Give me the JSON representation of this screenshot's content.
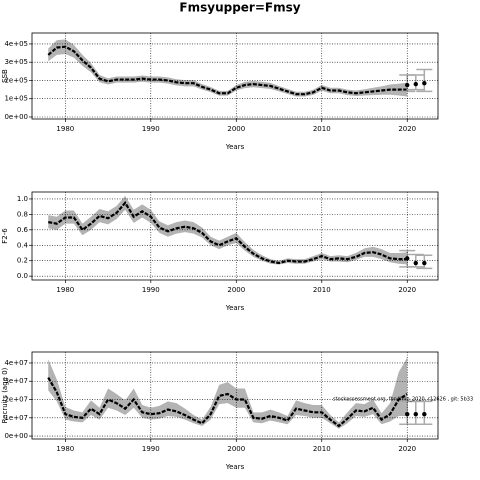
{
  "chart_data": [
    {
      "type": "line",
      "title": "Fmsyupper=Fmsy",
      "ylabel": "SSB",
      "xlabel": "Years",
      "xlim": [
        1976.1,
        2023.6
      ],
      "xticks": [
        1980,
        1990,
        2000,
        2010,
        2020
      ],
      "ylim": [
        -11000,
        460000
      ],
      "yticks": [
        {
          "value": 0,
          "label": "0e+00"
        },
        {
          "value": 100000,
          "label": "1e+05"
        },
        {
          "value": 200000,
          "label": "2e+05"
        },
        {
          "value": 300000,
          "label": "3e+05"
        },
        {
          "value": 400000,
          "label": "4e+05"
        }
      ],
      "grid": true,
      "line_color": "#000000",
      "band_color": "#b3b3b3",
      "x": [
        1978,
        1979,
        1980,
        1981,
        1982,
        1983,
        1984,
        1985,
        1986,
        1987,
        1988,
        1989,
        1990,
        1991,
        1992,
        1993,
        1994,
        1995,
        1996,
        1997,
        1998,
        1999,
        2000,
        2001,
        2002,
        2003,
        2004,
        2005,
        2006,
        2007,
        2008,
        2009,
        2010,
        2011,
        2012,
        2013,
        2014,
        2015,
        2016,
        2017,
        2018,
        2019,
        2020
      ],
      "values": [
        340000,
        380000,
        385000,
        360000,
        310000,
        270000,
        210000,
        195000,
        205000,
        205000,
        205000,
        210000,
        205000,
        205000,
        200000,
        190000,
        185000,
        185000,
        165000,
        150000,
        130000,
        130000,
        160000,
        175000,
        180000,
        175000,
        170000,
        155000,
        140000,
        125000,
        125000,
        135000,
        160000,
        145000,
        145000,
        135000,
        130000,
        135000,
        140000,
        145000,
        150000,
        150000,
        150000
      ],
      "lower": [
        305000,
        340000,
        345000,
        325000,
        280000,
        245000,
        190000,
        178000,
        188000,
        188000,
        188000,
        193000,
        188000,
        188000,
        183000,
        173000,
        168000,
        168000,
        150000,
        136000,
        117000,
        117000,
        145000,
        158000,
        163000,
        158000,
        153000,
        140000,
        126000,
        112000,
        112000,
        121000,
        144000,
        130000,
        130000,
        120000,
        115000,
        118000,
        120000,
        122000,
        122000,
        118000,
        112000
      ],
      "upper": [
        375000,
        420000,
        425000,
        395000,
        340000,
        295000,
        230000,
        212000,
        222000,
        222000,
        222000,
        227000,
        222000,
        222000,
        217000,
        207000,
        202000,
        202000,
        180000,
        164000,
        143000,
        143000,
        175000,
        192000,
        197000,
        192000,
        187000,
        170000,
        154000,
        138000,
        138000,
        149000,
        176000,
        160000,
        160000,
        150000,
        145000,
        152000,
        160000,
        168000,
        178000,
        182000,
        188000
      ],
      "forecast": {
        "x": [
          2020,
          2021,
          2022
        ],
        "values": [
          175000,
          180000,
          185000
        ],
        "lower": [
          140000,
          150000,
          140000
        ],
        "upper": [
          230000,
          230000,
          260000
        ]
      }
    },
    {
      "type": "line",
      "ylabel": "F2-6",
      "xlabel": "Years",
      "xlim": [
        1976.1,
        2023.6
      ],
      "xticks": [
        1980,
        1990,
        2000,
        2010,
        2020
      ],
      "ylim": [
        -0.05,
        1.09
      ],
      "yticks": [
        {
          "value": 0,
          "label": "0.0"
        },
        0.2,
        0.4,
        0.6,
        0.8,
        {
          "value": 1,
          "label": "1.0"
        }
      ],
      "grid": true,
      "line_color": "#000000",
      "band_color": "#b3b3b3",
      "x": [
        1978,
        1979,
        1980,
        1981,
        1982,
        1983,
        1984,
        1985,
        1986,
        1987,
        1988,
        1989,
        1990,
        1991,
        1992,
        1993,
        1994,
        1995,
        1996,
        1997,
        1998,
        1999,
        2000,
        2001,
        2002,
        2003,
        2004,
        2005,
        2006,
        2007,
        2008,
        2009,
        2010,
        2011,
        2012,
        2013,
        2014,
        2015,
        2016,
        2017,
        2018,
        2019,
        2020
      ],
      "values": [
        0.7,
        0.68,
        0.76,
        0.76,
        0.6,
        0.68,
        0.78,
        0.75,
        0.82,
        0.95,
        0.77,
        0.84,
        0.77,
        0.63,
        0.58,
        0.62,
        0.64,
        0.62,
        0.56,
        0.45,
        0.4,
        0.45,
        0.49,
        0.38,
        0.29,
        0.23,
        0.19,
        0.17,
        0.2,
        0.19,
        0.19,
        0.22,
        0.26,
        0.22,
        0.23,
        0.22,
        0.25,
        0.3,
        0.31,
        0.28,
        0.23,
        0.22,
        0.22
      ],
      "lower": [
        0.62,
        0.6,
        0.68,
        0.68,
        0.53,
        0.6,
        0.7,
        0.67,
        0.74,
        0.86,
        0.69,
        0.76,
        0.69,
        0.56,
        0.51,
        0.55,
        0.57,
        0.55,
        0.5,
        0.4,
        0.35,
        0.4,
        0.43,
        0.33,
        0.25,
        0.2,
        0.16,
        0.15,
        0.17,
        0.16,
        0.16,
        0.19,
        0.22,
        0.19,
        0.19,
        0.18,
        0.21,
        0.25,
        0.25,
        0.22,
        0.18,
        0.16,
        0.15
      ],
      "upper": [
        0.79,
        0.77,
        0.85,
        0.85,
        0.68,
        0.77,
        0.87,
        0.84,
        0.91,
        1.04,
        0.86,
        0.93,
        0.86,
        0.71,
        0.66,
        0.7,
        0.72,
        0.7,
        0.63,
        0.51,
        0.46,
        0.51,
        0.56,
        0.44,
        0.34,
        0.27,
        0.22,
        0.2,
        0.23,
        0.22,
        0.22,
        0.26,
        0.3,
        0.26,
        0.27,
        0.26,
        0.3,
        0.36,
        0.38,
        0.35,
        0.3,
        0.3,
        0.31
      ],
      "forecast": {
        "x": [
          2020,
          2021,
          2022
        ],
        "values": [
          0.23,
          0.17,
          0.17
        ],
        "lower": [
          0.12,
          0.12,
          0.1
        ],
        "upper": [
          0.33,
          0.28,
          0.27
        ]
      }
    },
    {
      "type": "line",
      "ylabel": "Recruits (age 0)",
      "xlabel": "Years",
      "annotation": "stockassessment.org, fbn4lmp_2020, r12626 , git: 5b33",
      "xlim": [
        1976.1,
        2023.6
      ],
      "xticks": [
        1980,
        1990,
        2000,
        2010,
        2020
      ],
      "ylim": [
        -1600000,
        46000000
      ],
      "yticks": [
        {
          "value": 0,
          "label": "0e+00"
        },
        {
          "value": 10000000,
          "label": "1e+07"
        },
        {
          "value": 20000000,
          "label": "2e+07"
        },
        {
          "value": 30000000,
          "label": "3e+07"
        },
        {
          "value": 40000000,
          "label": "4e+07"
        }
      ],
      "grid": true,
      "line_color": "#000000",
      "band_color": "#b3b3b3",
      "x": [
        1978,
        1979,
        1980,
        1981,
        1982,
        1983,
        1984,
        1985,
        1986,
        1987,
        1988,
        1989,
        1990,
        1991,
        1992,
        1993,
        1994,
        1995,
        1996,
        1997,
        1998,
        1999,
        2000,
        2001,
        2002,
        2003,
        2004,
        2005,
        2006,
        2007,
        2008,
        2009,
        2010,
        2011,
        2012,
        2013,
        2014,
        2015,
        2016,
        2017,
        2018,
        2019,
        2020
      ],
      "values": [
        32000000,
        24000000,
        12000000,
        10500000,
        10000000,
        15000000,
        12000000,
        20000000,
        18000000,
        15000000,
        20000000,
        13000000,
        12000000,
        12500000,
        14500000,
        13500000,
        11500000,
        9000000,
        7000000,
        12000000,
        22000000,
        23000000,
        20000000,
        20000000,
        10000000,
        9500000,
        11000000,
        10000000,
        8500000,
        15000000,
        14000000,
        13000000,
        13000000,
        9000000,
        5500000,
        9500000,
        14000000,
        13500000,
        15500000,
        9000000,
        12000000,
        20000000,
        23000000
      ],
      "lower": [
        25000000,
        19000000,
        9000000,
        8000000,
        7500000,
        11500000,
        9000000,
        15500000,
        14000000,
        11500000,
        15500000,
        10000000,
        9000000,
        9500000,
        11000000,
        10500000,
        9000000,
        7000000,
        5500000,
        9000000,
        17500000,
        18000000,
        15500000,
        15500000,
        7500000,
        7000000,
        8500000,
        7500000,
        6500000,
        11500000,
        11000000,
        10000000,
        10000000,
        7000000,
        4000000,
        7000000,
        11000000,
        10500000,
        12000000,
        6500000,
        8000000,
        11000000,
        11000000
      ],
      "upper": [
        42000000,
        31000000,
        16000000,
        14000000,
        13000000,
        19500000,
        15500000,
        26000000,
        23000000,
        19500000,
        26000000,
        17000000,
        15500000,
        16500000,
        19000000,
        18000000,
        15000000,
        11500000,
        9000000,
        16000000,
        28000000,
        29500000,
        26000000,
        26000000,
        13000000,
        13000000,
        14500000,
        13000000,
        11000000,
        19500000,
        18000000,
        17000000,
        17000000,
        11500000,
        7500000,
        13000000,
        18000000,
        17500000,
        20000000,
        12500000,
        18000000,
        35000000,
        43000000
      ],
      "forecast": {
        "x": [
          2020,
          2021,
          2022
        ],
        "values": [
          12000000,
          12000000,
          12000000
        ],
        "lower": [
          6500000,
          6500000,
          6500000
        ],
        "upper": [
          19000000,
          19000000,
          19000000
        ]
      }
    }
  ]
}
